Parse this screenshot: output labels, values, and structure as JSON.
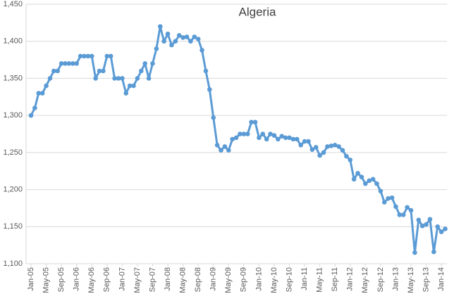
{
  "chart_data": {
    "type": "line",
    "title": "Algeria",
    "categories": [
      "Jan-05",
      null,
      null,
      null,
      "May-05",
      null,
      null,
      null,
      "Sep-05",
      null,
      null,
      null,
      "Jan-06",
      null,
      null,
      null,
      "May-06",
      null,
      null,
      null,
      "Sep-06",
      null,
      null,
      null,
      "Jan-07",
      null,
      null,
      null,
      "May-07",
      null,
      null,
      null,
      "Sep-07",
      null,
      null,
      null,
      "Jan-08",
      null,
      null,
      null,
      "May-08",
      null,
      null,
      null,
      "Sep-08",
      null,
      null,
      null,
      "Jan-09",
      null,
      null,
      null,
      "May-09",
      null,
      null,
      null,
      "Sep-09",
      null,
      null,
      null,
      "Jan-10",
      null,
      null,
      null,
      "May-10",
      null,
      null,
      null,
      "Sep-10",
      null,
      null,
      null,
      "Jan-11",
      null,
      null,
      null,
      "May-11",
      null,
      null,
      null,
      "Sep-11",
      null,
      null,
      null,
      "Jan-12",
      null,
      null,
      null,
      "May-12",
      null,
      null,
      null,
      "Sep-12",
      null,
      null,
      null,
      "Jan-13",
      null,
      null,
      null,
      "May-13",
      null,
      null,
      null,
      "Sep-13",
      null,
      null,
      null,
      "Jan-14",
      null
    ],
    "values": [
      1300,
      1310,
      1330,
      1330,
      1340,
      1350,
      1360,
      1360,
      1370,
      1370,
      1370,
      1370,
      1370,
      1380,
      1380,
      1380,
      1380,
      1350,
      1360,
      1360,
      1380,
      1380,
      1350,
      1350,
      1350,
      1330,
      1340,
      1340,
      1350,
      1360,
      1370,
      1350,
      1370,
      1390,
      1420,
      1400,
      1410,
      1395,
      1400,
      1408,
      1405,
      1406,
      1400,
      1406,
      1403,
      1388,
      1360,
      1335,
      1297,
      1260,
      1253,
      1258,
      1253,
      1268,
      1270,
      1275,
      1275,
      1275,
      1291,
      1291,
      1270,
      1275,
      1268,
      1275,
      1273,
      1268,
      1272,
      1270,
      1270,
      1268,
      1268,
      1260,
      1265,
      1265,
      1254,
      1257,
      1246,
      1250,
      1258,
      1259,
      1260,
      1258,
      1253,
      1245,
      1240,
      1214,
      1222,
      1217,
      1208,
      1212,
      1214,
      1208,
      1198,
      1183,
      1188,
      1189,
      1177,
      1166,
      1166,
      1176,
      1172,
      1115,
      1159,
      1151,
      1153,
      1160,
      1116,
      1150,
      1143,
      1147
    ],
    "color": "#5b9bd5",
    "ylim": [
      1100,
      1450
    ],
    "yticks": [
      {
        "value": 1100,
        "label": "1,100"
      },
      {
        "value": 1150,
        "label": "1,150"
      },
      {
        "value": 1200,
        "label": "1,200"
      },
      {
        "value": 1250,
        "label": "1,250"
      },
      {
        "value": 1300,
        "label": "1,300"
      },
      {
        "value": 1350,
        "label": "1,350"
      },
      {
        "value": 1400,
        "label": "1,400"
      },
      {
        "value": 1450,
        "label": "1,450"
      }
    ],
    "grid": true
  }
}
